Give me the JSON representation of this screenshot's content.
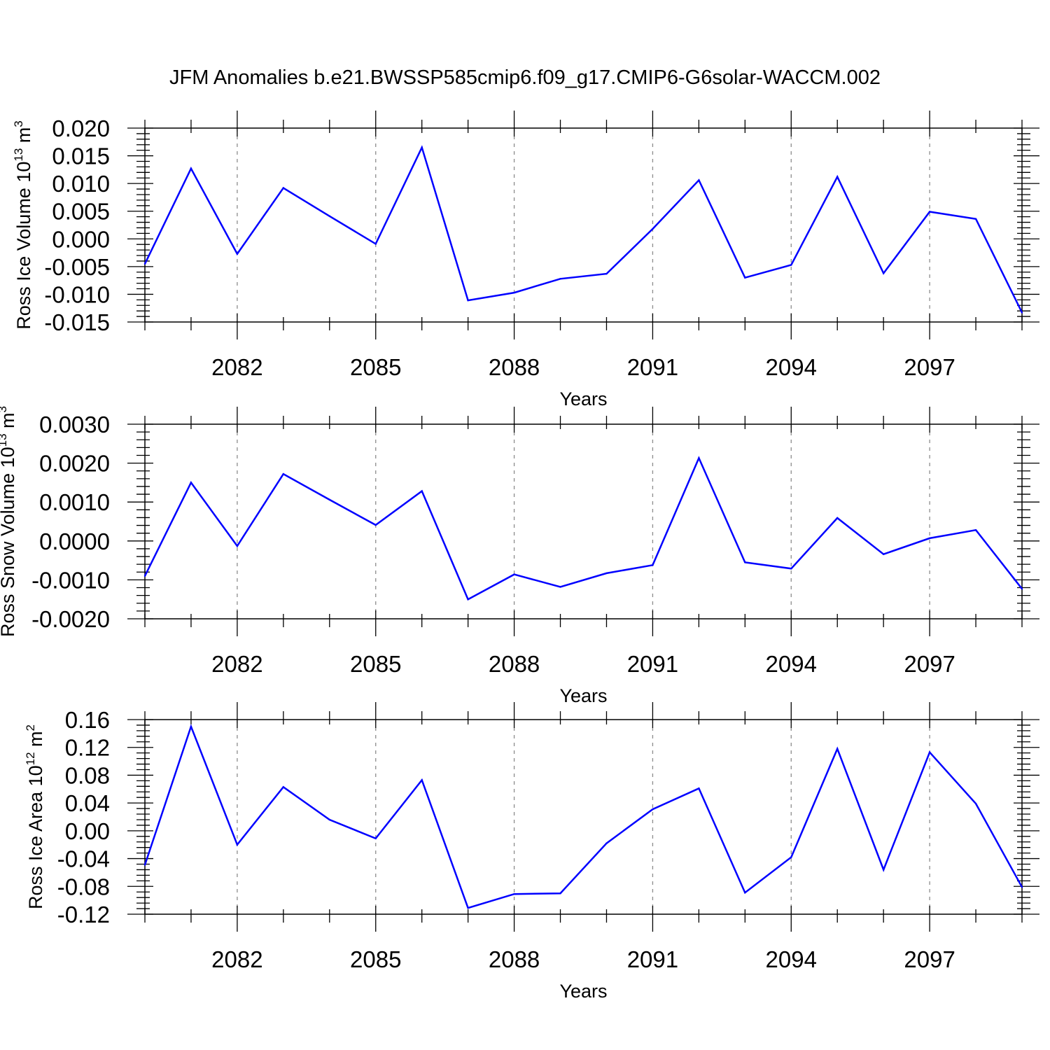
{
  "title": "JFM Anomalies b.e21.BWSSP585cmip6.f09_g17.CMIP6-G6solar-WACCM.002",
  "chart_data": [
    {
      "type": "line",
      "ylabel": "Ross Ice Volume 10",
      "ylabel_exp": "13",
      "ylabel_unit": "m",
      "ylabel_unit_exp": "3",
      "xlabel": "Years",
      "xlim": [
        2080,
        2099
      ],
      "ylim": [
        -0.015,
        0.02
      ],
      "xticks": [
        2082,
        2085,
        2088,
        2091,
        2094,
        2097
      ],
      "xtick_labels": [
        "2082",
        "2085",
        "2088",
        "2091",
        "2094",
        "2097"
      ],
      "yticks": [
        -0.015,
        -0.01,
        -0.005,
        0.0,
        0.005,
        0.01,
        0.015,
        0.02
      ],
      "ytick_labels": [
        "-0.015",
        "-0.010",
        "-0.005",
        "0.000",
        "0.005",
        "0.010",
        "0.015",
        "0.020"
      ],
      "ymin_step": 0.001,
      "grid": "vertical dashed at labeled years",
      "line_color": "#0000ff",
      "x": [
        2080,
        2081,
        2082,
        2083,
        2084,
        2085,
        2086,
        2087,
        2088,
        2089,
        2090,
        2091,
        2092,
        2093,
        2094,
        2095,
        2096,
        2097,
        2098,
        2099
      ],
      "values": [
        -0.0045,
        0.0127,
        -0.0027,
        0.0092,
        0.0041,
        -0.0009,
        0.0165,
        -0.0111,
        -0.0097,
        -0.0072,
        -0.0063,
        0.0018,
        0.0106,
        -0.007,
        -0.0047,
        0.0112,
        -0.0062,
        0.0049,
        0.0036,
        -0.0133
      ]
    },
    {
      "type": "line",
      "ylabel": "Ross Snow Volume 10",
      "ylabel_exp": "13",
      "ylabel_unit": "m",
      "ylabel_unit_exp": "3",
      "xlabel": "Years",
      "xlim": [
        2080,
        2099
      ],
      "ylim": [
        -0.002,
        0.003
      ],
      "xticks": [
        2082,
        2085,
        2088,
        2091,
        2094,
        2097
      ],
      "xtick_labels": [
        "2082",
        "2085",
        "2088",
        "2091",
        "2094",
        "2097"
      ],
      "yticks": [
        -0.002,
        -0.001,
        0.0,
        0.001,
        0.002,
        0.003
      ],
      "ytick_labels": [
        "-0.0020",
        "-0.0010",
        "0.0000",
        "0.0010",
        "0.0020",
        "0.0030"
      ],
      "ymin_step": 0.0002,
      "grid": "vertical dashed at labeled years",
      "line_color": "#0000ff",
      "x": [
        2080,
        2081,
        2082,
        2083,
        2084,
        2085,
        2086,
        2087,
        2088,
        2089,
        2090,
        2091,
        2092,
        2093,
        2094,
        2095,
        2096,
        2097,
        2098,
        2099
      ],
      "values": [
        -0.0009,
        0.0015,
        -0.00013,
        0.00172,
        0.00106,
        0.00041,
        0.00128,
        -0.0015,
        -0.00086,
        -0.00118,
        -0.00083,
        -0.00062,
        0.00213,
        -0.00055,
        -0.00071,
        0.00059,
        -0.00034,
        7e-05,
        0.00028,
        -0.00123
      ]
    },
    {
      "type": "line",
      "ylabel": "Ross Ice Area 10",
      "ylabel_exp": "12",
      "ylabel_unit": "m",
      "ylabel_unit_exp": "2",
      "xlabel": "Years",
      "xlim": [
        2080,
        2099
      ],
      "ylim": [
        -0.12,
        0.16
      ],
      "xticks": [
        2082,
        2085,
        2088,
        2091,
        2094,
        2097
      ],
      "xtick_labels": [
        "2082",
        "2085",
        "2088",
        "2091",
        "2094",
        "2097"
      ],
      "yticks": [
        -0.12,
        -0.08,
        -0.04,
        0.0,
        0.04,
        0.08,
        0.12,
        0.16
      ],
      "ytick_labels": [
        "-0.12",
        "-0.08",
        "-0.04",
        "0.00",
        "0.04",
        "0.08",
        "0.12",
        "0.16"
      ],
      "ymin_step": 0.008,
      "grid": "vertical dashed at labeled years",
      "line_color": "#0000ff",
      "x": [
        2080,
        2081,
        2082,
        2083,
        2084,
        2085,
        2086,
        2087,
        2088,
        2089,
        2090,
        2091,
        2092,
        2093,
        2094,
        2095,
        2096,
        2097,
        2098,
        2099
      ],
      "values": [
        -0.049,
        0.15,
        -0.02,
        0.063,
        0.016,
        -0.011,
        0.073,
        -0.111,
        -0.091,
        -0.09,
        -0.018,
        0.031,
        0.061,
        -0.089,
        -0.038,
        0.118,
        -0.056,
        0.113,
        0.039,
        -0.081
      ]
    }
  ]
}
